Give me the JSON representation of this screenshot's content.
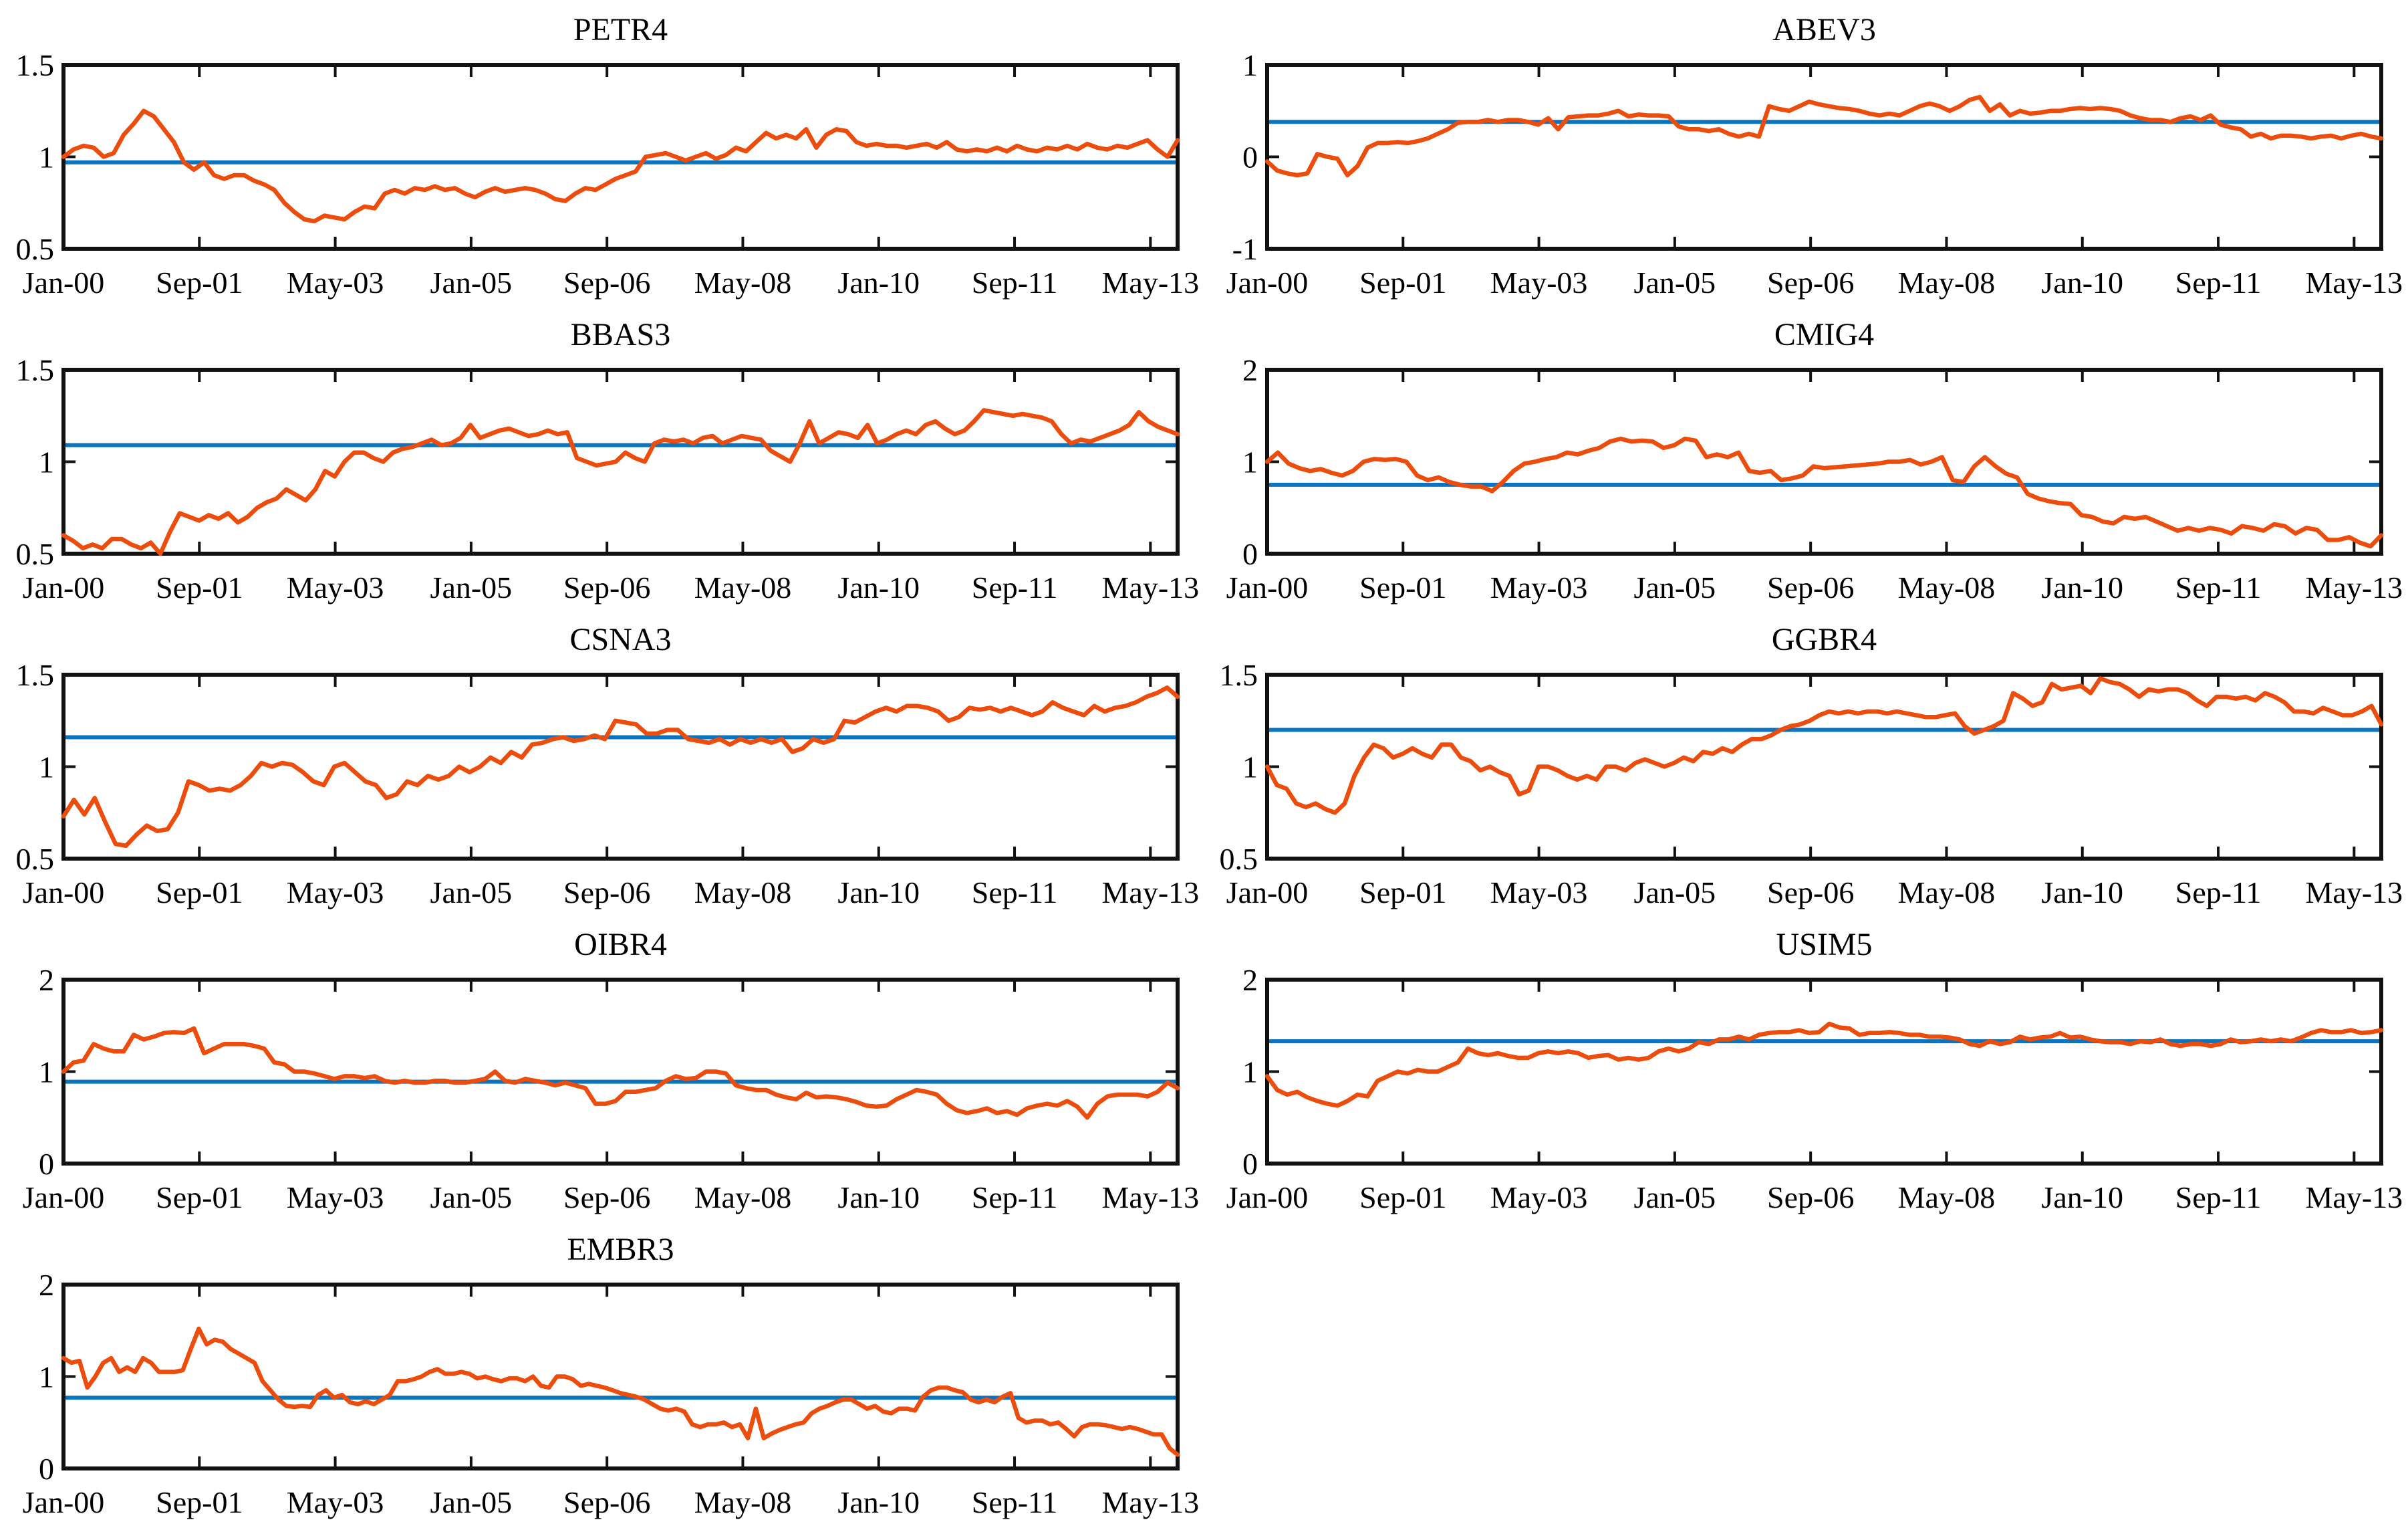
{
  "figure": {
    "description": "Grid of nine time-series subplots of Brazilian stock tickers, each with an orange series line and a horizontal blue mean line",
    "grid": {
      "rows": 5,
      "cols": 2
    }
  },
  "colors": {
    "series_line": "#EC4D0C",
    "mean_line": "#0B74BE",
    "axis": "#111111",
    "background": "#ffffff",
    "text": "#000000"
  },
  "axis": {
    "x_tick_labels": [
      "Jan-00",
      "Sep-01",
      "May-03",
      "Jan-05",
      "Sep-06",
      "May-08",
      "Jan-10",
      "Sep-11",
      "May-13"
    ],
    "x_tick_interval_months": 20,
    "x_total_months": 164,
    "grid_lines": false,
    "legend": "none"
  },
  "chart_data": [
    {
      "type": "line",
      "title": "PETR4",
      "ylim": [
        0.5,
        1.5
      ],
      "ytick_labels": [
        "1.5",
        "1",
        "0.5"
      ],
      "ytick_values": [
        1.5,
        1.0,
        0.5
      ],
      "mean_line": 0.97,
      "values": [
        1.0,
        1.04,
        1.06,
        1.05,
        1.0,
        1.02,
        1.12,
        1.18,
        1.25,
        1.22,
        1.15,
        1.08,
        0.97,
        0.93,
        0.97,
        0.9,
        0.88,
        0.9,
        0.9,
        0.87,
        0.85,
        0.82,
        0.75,
        0.7,
        0.66,
        0.65,
        0.68,
        0.67,
        0.66,
        0.7,
        0.73,
        0.72,
        0.8,
        0.82,
        0.8,
        0.83,
        0.82,
        0.84,
        0.82,
        0.83,
        0.8,
        0.78,
        0.81,
        0.83,
        0.81,
        0.82,
        0.83,
        0.82,
        0.8,
        0.77,
        0.76,
        0.8,
        0.83,
        0.82,
        0.85,
        0.88,
        0.9,
        0.92,
        1.0,
        1.01,
        1.02,
        1.0,
        0.98,
        1.0,
        1.02,
        0.99,
        1.01,
        1.05,
        1.03,
        1.08,
        1.13,
        1.1,
        1.12,
        1.1,
        1.15,
        1.05,
        1.12,
        1.15,
        1.14,
        1.08,
        1.06,
        1.07,
        1.06,
        1.06,
        1.05,
        1.06,
        1.07,
        1.05,
        1.08,
        1.04,
        1.03,
        1.04,
        1.03,
        1.05,
        1.03,
        1.06,
        1.04,
        1.03,
        1.05,
        1.04,
        1.06,
        1.04,
        1.07,
        1.05,
        1.04,
        1.06,
        1.05,
        1.07,
        1.09,
        1.04,
        1.0,
        1.09
      ]
    },
    {
      "type": "line",
      "title": "ABEV3",
      "ylim": [
        -1,
        1
      ],
      "ytick_labels": [
        "1",
        "0",
        "-1"
      ],
      "ytick_values": [
        1.0,
        0.0,
        -1.0
      ],
      "mean_line": 0.38,
      "values": [
        -0.05,
        -0.15,
        -0.18,
        -0.2,
        -0.18,
        0.03,
        0.0,
        -0.02,
        -0.2,
        -0.1,
        0.1,
        0.15,
        0.15,
        0.16,
        0.15,
        0.17,
        0.2,
        0.25,
        0.3,
        0.37,
        0.38,
        0.38,
        0.4,
        0.38,
        0.4,
        0.4,
        0.38,
        0.35,
        0.42,
        0.3,
        0.43,
        0.44,
        0.45,
        0.45,
        0.47,
        0.5,
        0.44,
        0.46,
        0.45,
        0.45,
        0.44,
        0.33,
        0.3,
        0.3,
        0.28,
        0.3,
        0.25,
        0.22,
        0.25,
        0.22,
        0.55,
        0.52,
        0.5,
        0.55,
        0.6,
        0.57,
        0.55,
        0.53,
        0.52,
        0.5,
        0.47,
        0.45,
        0.47,
        0.45,
        0.5,
        0.55,
        0.58,
        0.55,
        0.5,
        0.55,
        0.62,
        0.65,
        0.5,
        0.57,
        0.45,
        0.5,
        0.47,
        0.48,
        0.5,
        0.5,
        0.52,
        0.53,
        0.52,
        0.53,
        0.52,
        0.5,
        0.45,
        0.42,
        0.4,
        0.4,
        0.38,
        0.42,
        0.44,
        0.4,
        0.45,
        0.35,
        0.32,
        0.3,
        0.22,
        0.25,
        0.2,
        0.23,
        0.23,
        0.22,
        0.2,
        0.22,
        0.23,
        0.2,
        0.23,
        0.25,
        0.22,
        0.2
      ]
    },
    {
      "type": "line",
      "title": "BBAS3",
      "ylim": [
        0.5,
        1.5
      ],
      "ytick_labels": [
        "1.5",
        "1",
        "0.5"
      ],
      "ytick_values": [
        1.5,
        1.0,
        0.5
      ],
      "mean_line": 1.09,
      "values": [
        0.6,
        0.57,
        0.53,
        0.55,
        0.53,
        0.58,
        0.58,
        0.55,
        0.53,
        0.56,
        0.5,
        0.62,
        0.72,
        0.7,
        0.68,
        0.71,
        0.69,
        0.72,
        0.67,
        0.7,
        0.75,
        0.78,
        0.8,
        0.85,
        0.82,
        0.79,
        0.85,
        0.95,
        0.92,
        1.0,
        1.05,
        1.05,
        1.02,
        1.0,
        1.05,
        1.07,
        1.08,
        1.1,
        1.12,
        1.09,
        1.1,
        1.13,
        1.2,
        1.13,
        1.15,
        1.17,
        1.18,
        1.16,
        1.14,
        1.15,
        1.17,
        1.15,
        1.16,
        1.02,
        1.0,
        0.98,
        0.99,
        1.0,
        1.05,
        1.02,
        1.0,
        1.1,
        1.12,
        1.11,
        1.12,
        1.1,
        1.13,
        1.14,
        1.1,
        1.12,
        1.14,
        1.13,
        1.12,
        1.06,
        1.03,
        1.0,
        1.1,
        1.22,
        1.1,
        1.13,
        1.16,
        1.15,
        1.13,
        1.2,
        1.1,
        1.12,
        1.15,
        1.17,
        1.15,
        1.2,
        1.22,
        1.18,
        1.15,
        1.17,
        1.22,
        1.28,
        1.27,
        1.26,
        1.25,
        1.26,
        1.25,
        1.24,
        1.22,
        1.15,
        1.1,
        1.12,
        1.11,
        1.13,
        1.15,
        1.17,
        1.2,
        1.27,
        1.22,
        1.19,
        1.17,
        1.15
      ]
    },
    {
      "type": "line",
      "title": "CMIG4",
      "ylim": [
        0,
        2
      ],
      "ytick_labels": [
        "2",
        "1",
        "0"
      ],
      "ytick_values": [
        2.0,
        1.0,
        0.0
      ],
      "mean_line": 0.75,
      "values": [
        1.0,
        1.1,
        0.98,
        0.93,
        0.9,
        0.92,
        0.88,
        0.85,
        0.9,
        1.0,
        1.03,
        1.02,
        1.03,
        1.0,
        0.85,
        0.8,
        0.83,
        0.78,
        0.75,
        0.73,
        0.73,
        0.68,
        0.78,
        0.9,
        0.98,
        1.0,
        1.03,
        1.05,
        1.1,
        1.08,
        1.12,
        1.15,
        1.22,
        1.25,
        1.22,
        1.23,
        1.22,
        1.15,
        1.18,
        1.25,
        1.23,
        1.05,
        1.08,
        1.05,
        1.1,
        0.9,
        0.88,
        0.9,
        0.8,
        0.82,
        0.85,
        0.95,
        0.93,
        0.94,
        0.95,
        0.96,
        0.97,
        0.98,
        1.0,
        1.0,
        1.02,
        0.97,
        1.0,
        1.05,
        0.8,
        0.78,
        0.95,
        1.05,
        0.95,
        0.87,
        0.83,
        0.65,
        0.6,
        0.57,
        0.55,
        0.54,
        0.42,
        0.4,
        0.35,
        0.33,
        0.4,
        0.38,
        0.4,
        0.35,
        0.3,
        0.25,
        0.28,
        0.25,
        0.28,
        0.26,
        0.22,
        0.3,
        0.28,
        0.25,
        0.32,
        0.3,
        0.22,
        0.28,
        0.26,
        0.15,
        0.15,
        0.18,
        0.12,
        0.08,
        0.2
      ]
    },
    {
      "type": "line",
      "title": "CSNA3",
      "ylim": [
        0.5,
        1.5
      ],
      "ytick_labels": [
        "1.5",
        "1",
        "0.5"
      ],
      "ytick_values": [
        1.5,
        1.0,
        0.5
      ],
      "mean_line": 1.16,
      "values": [
        0.73,
        0.82,
        0.74,
        0.83,
        0.7,
        0.58,
        0.57,
        0.63,
        0.68,
        0.65,
        0.66,
        0.75,
        0.92,
        0.9,
        0.87,
        0.88,
        0.87,
        0.9,
        0.95,
        1.02,
        1.0,
        1.02,
        1.01,
        0.97,
        0.92,
        0.9,
        1.0,
        1.02,
        0.97,
        0.92,
        0.9,
        0.83,
        0.85,
        0.92,
        0.9,
        0.95,
        0.93,
        0.95,
        1.0,
        0.97,
        1.0,
        1.05,
        1.02,
        1.08,
        1.05,
        1.12,
        1.13,
        1.15,
        1.16,
        1.14,
        1.15,
        1.17,
        1.15,
        1.25,
        1.24,
        1.23,
        1.18,
        1.18,
        1.2,
        1.2,
        1.15,
        1.14,
        1.13,
        1.15,
        1.12,
        1.15,
        1.13,
        1.15,
        1.13,
        1.15,
        1.08,
        1.1,
        1.15,
        1.13,
        1.15,
        1.25,
        1.24,
        1.27,
        1.3,
        1.32,
        1.3,
        1.33,
        1.33,
        1.32,
        1.3,
        1.25,
        1.27,
        1.32,
        1.31,
        1.32,
        1.3,
        1.32,
        1.3,
        1.28,
        1.3,
        1.35,
        1.32,
        1.3,
        1.28,
        1.33,
        1.3,
        1.32,
        1.33,
        1.35,
        1.38,
        1.4,
        1.43,
        1.38
      ]
    },
    {
      "type": "line",
      "title": "GGBR4",
      "ylim": [
        0.5,
        1.5
      ],
      "ytick_labels": [
        "1.5",
        "1",
        "0.5"
      ],
      "ytick_values": [
        1.5,
        1.0,
        0.5
      ],
      "mean_line": 1.2,
      "values": [
        1.0,
        0.9,
        0.88,
        0.8,
        0.78,
        0.8,
        0.77,
        0.75,
        0.8,
        0.95,
        1.05,
        1.12,
        1.1,
        1.05,
        1.07,
        1.1,
        1.07,
        1.05,
        1.12,
        1.12,
        1.05,
        1.03,
        0.98,
        1.0,
        0.97,
        0.95,
        0.85,
        0.87,
        1.0,
        1.0,
        0.98,
        0.95,
        0.93,
        0.95,
        0.93,
        1.0,
        1.0,
        0.98,
        1.02,
        1.04,
        1.02,
        1.0,
        1.02,
        1.05,
        1.03,
        1.08,
        1.07,
        1.1,
        1.08,
        1.12,
        1.15,
        1.15,
        1.17,
        1.2,
        1.22,
        1.23,
        1.25,
        1.28,
        1.3,
        1.29,
        1.3,
        1.29,
        1.3,
        1.3,
        1.29,
        1.3,
        1.29,
        1.28,
        1.27,
        1.27,
        1.28,
        1.29,
        1.22,
        1.18,
        1.2,
        1.22,
        1.25,
        1.4,
        1.37,
        1.33,
        1.35,
        1.45,
        1.42,
        1.43,
        1.44,
        1.4,
        1.48,
        1.46,
        1.45,
        1.42,
        1.38,
        1.42,
        1.41,
        1.42,
        1.42,
        1.4,
        1.36,
        1.33,
        1.38,
        1.38,
        1.37,
        1.38,
        1.36,
        1.4,
        1.38,
        1.35,
        1.3,
        1.3,
        1.29,
        1.32,
        1.3,
        1.28,
        1.28,
        1.3,
        1.33,
        1.23
      ]
    },
    {
      "type": "line",
      "title": "OIBR4",
      "ylim": [
        0,
        2
      ],
      "ytick_labels": [
        "2",
        "1",
        "0"
      ],
      "ytick_values": [
        2.0,
        1.0,
        0.0
      ],
      "mean_line": 0.89,
      "values": [
        1.0,
        1.1,
        1.12,
        1.3,
        1.25,
        1.22,
        1.22,
        1.4,
        1.35,
        1.38,
        1.42,
        1.43,
        1.42,
        1.47,
        1.2,
        1.25,
        1.3,
        1.3,
        1.3,
        1.28,
        1.25,
        1.1,
        1.08,
        1.0,
        1.0,
        0.98,
        0.95,
        0.92,
        0.95,
        0.95,
        0.93,
        0.95,
        0.9,
        0.88,
        0.9,
        0.88,
        0.88,
        0.9,
        0.9,
        0.88,
        0.88,
        0.9,
        0.92,
        1.0,
        0.9,
        0.88,
        0.92,
        0.9,
        0.88,
        0.85,
        0.88,
        0.85,
        0.82,
        0.65,
        0.65,
        0.68,
        0.78,
        0.78,
        0.8,
        0.82,
        0.9,
        0.95,
        0.92,
        0.93,
        1.0,
        1.0,
        0.98,
        0.85,
        0.82,
        0.8,
        0.8,
        0.75,
        0.72,
        0.7,
        0.77,
        0.72,
        0.73,
        0.72,
        0.7,
        0.67,
        0.63,
        0.62,
        0.63,
        0.7,
        0.75,
        0.8,
        0.78,
        0.75,
        0.65,
        0.58,
        0.55,
        0.57,
        0.6,
        0.55,
        0.57,
        0.53,
        0.6,
        0.63,
        0.65,
        0.63,
        0.68,
        0.62,
        0.5,
        0.65,
        0.73,
        0.75,
        0.75,
        0.75,
        0.73,
        0.78,
        0.88,
        0.82
      ]
    },
    {
      "type": "line",
      "title": "USIM5",
      "ylim": [
        0,
        2
      ],
      "ytick_labels": [
        "2",
        "1",
        "0"
      ],
      "ytick_values": [
        2.0,
        1.0,
        0.0
      ],
      "mean_line": 1.33,
      "values": [
        0.95,
        0.8,
        0.75,
        0.78,
        0.72,
        0.68,
        0.65,
        0.63,
        0.68,
        0.75,
        0.73,
        0.9,
        0.95,
        1.0,
        0.98,
        1.02,
        1.0,
        1.0,
        1.05,
        1.1,
        1.25,
        1.2,
        1.18,
        1.2,
        1.17,
        1.15,
        1.15,
        1.2,
        1.22,
        1.2,
        1.22,
        1.2,
        1.15,
        1.17,
        1.18,
        1.13,
        1.15,
        1.13,
        1.15,
        1.22,
        1.25,
        1.22,
        1.25,
        1.32,
        1.3,
        1.35,
        1.35,
        1.38,
        1.35,
        1.4,
        1.42,
        1.43,
        1.43,
        1.45,
        1.42,
        1.43,
        1.52,
        1.48,
        1.47,
        1.4,
        1.42,
        1.42,
        1.43,
        1.42,
        1.4,
        1.4,
        1.38,
        1.38,
        1.37,
        1.35,
        1.3,
        1.28,
        1.33,
        1.3,
        1.32,
        1.38,
        1.35,
        1.37,
        1.38,
        1.42,
        1.37,
        1.38,
        1.35,
        1.33,
        1.32,
        1.32,
        1.3,
        1.33,
        1.32,
        1.35,
        1.3,
        1.28,
        1.3,
        1.3,
        1.28,
        1.3,
        1.35,
        1.32,
        1.33,
        1.35,
        1.33,
        1.35,
        1.33,
        1.37,
        1.42,
        1.45,
        1.43,
        1.43,
        1.45,
        1.42,
        1.43,
        1.45
      ]
    },
    {
      "type": "line",
      "title": "EMBR3",
      "ylim": [
        0,
        2
      ],
      "ytick_labels": [
        "2",
        "1",
        "0"
      ],
      "ytick_values": [
        2.0,
        1.0,
        0.0
      ],
      "mean_line": 0.77,
      "values": [
        1.2,
        1.15,
        1.17,
        0.88,
        1.0,
        1.15,
        1.2,
        1.05,
        1.1,
        1.05,
        1.2,
        1.15,
        1.05,
        1.05,
        1.05,
        1.07,
        1.3,
        1.52,
        1.35,
        1.4,
        1.38,
        1.3,
        1.25,
        1.2,
        1.15,
        0.95,
        0.85,
        0.75,
        0.68,
        0.67,
        0.68,
        0.67,
        0.8,
        0.85,
        0.77,
        0.8,
        0.72,
        0.7,
        0.73,
        0.7,
        0.75,
        0.8,
        0.95,
        0.95,
        0.97,
        1.0,
        1.05,
        1.08,
        1.03,
        1.03,
        1.05,
        1.03,
        0.98,
        1.0,
        0.97,
        0.95,
        0.98,
        0.98,
        0.95,
        1.0,
        0.9,
        0.88,
        1.0,
        1.0,
        0.97,
        0.9,
        0.92,
        0.9,
        0.88,
        0.85,
        0.82,
        0.8,
        0.78,
        0.75,
        0.7,
        0.65,
        0.63,
        0.65,
        0.62,
        0.48,
        0.45,
        0.48,
        0.48,
        0.5,
        0.45,
        0.48,
        0.33,
        0.65,
        0.33,
        0.38,
        0.42,
        0.45,
        0.48,
        0.5,
        0.6,
        0.65,
        0.68,
        0.72,
        0.75,
        0.75,
        0.7,
        0.65,
        0.68,
        0.62,
        0.6,
        0.65,
        0.65,
        0.63,
        0.78,
        0.85,
        0.88,
        0.88,
        0.85,
        0.83,
        0.75,
        0.72,
        0.75,
        0.72,
        0.78,
        0.82,
        0.55,
        0.5,
        0.52,
        0.52,
        0.48,
        0.5,
        0.43,
        0.35,
        0.45,
        0.48,
        0.48,
        0.47,
        0.45,
        0.43,
        0.45,
        0.43,
        0.4,
        0.37,
        0.37,
        0.22,
        0.15
      ]
    }
  ]
}
